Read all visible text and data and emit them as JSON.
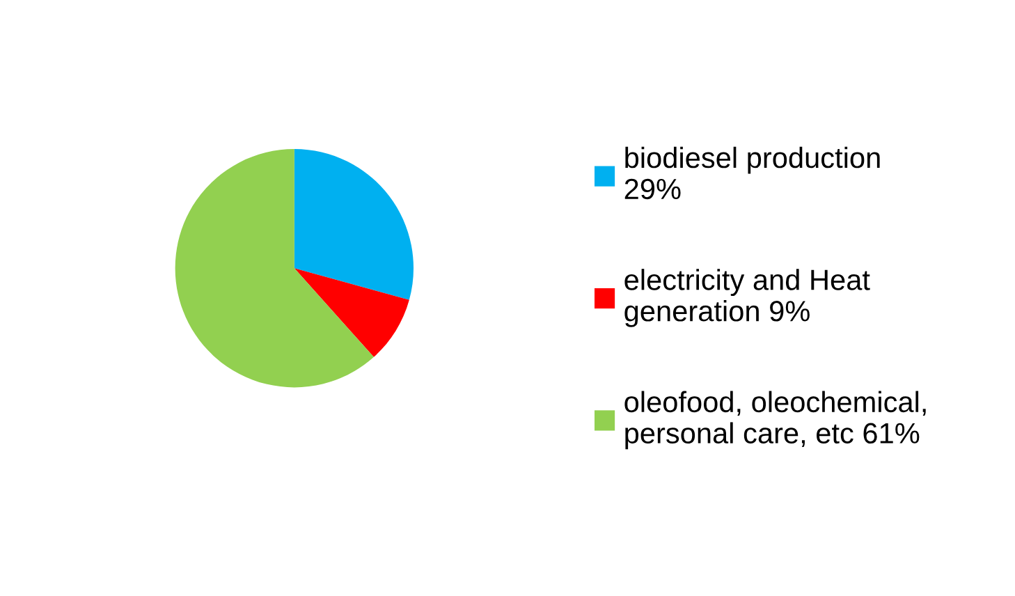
{
  "chart_data": {
    "type": "pie",
    "categories": [
      "biodiesel production\n29%",
      "electricity and Heat\ngeneration 9%",
      "oleofood, oleochemical,\npersonal care, etc 61%"
    ],
    "values": [
      29,
      9,
      61
    ],
    "colors": [
      "#00b0f0",
      "#ff0000",
      "#92d050"
    ],
    "legend": "right"
  }
}
